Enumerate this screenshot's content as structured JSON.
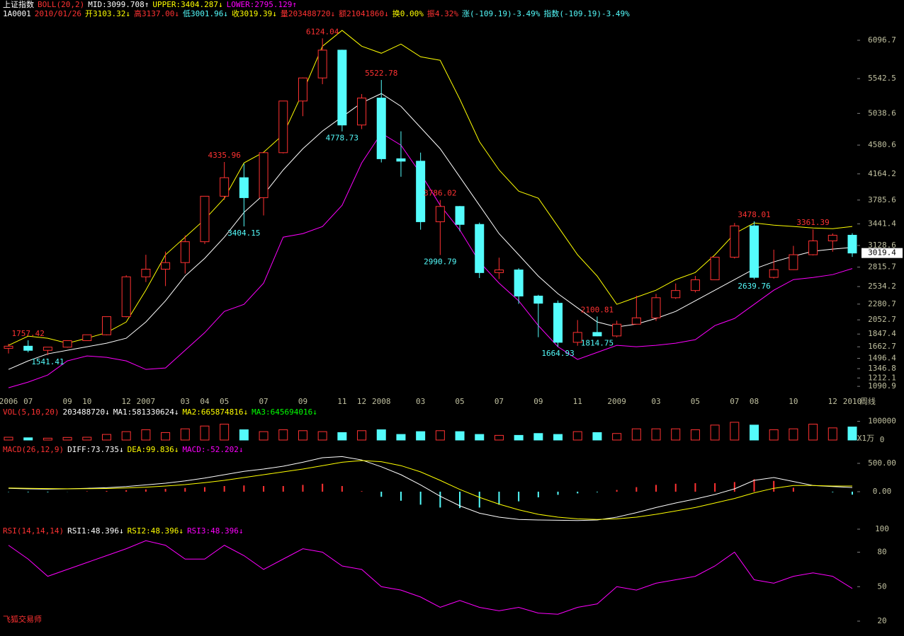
{
  "header": {
    "line1": [
      "上证指数",
      "BOLL(20,2)",
      "MID:3099.708↑",
      "UPPER:3404.287↓",
      "LOWER:2795.129↑"
    ],
    "line1_colors": [
      "#ffffff",
      "#ff3232",
      "#ffffff",
      "#ffff00",
      "#ff00ff"
    ],
    "line2": [
      "1A0001",
      "2010/01/26",
      "开3103.32↓",
      "高3137.00↓",
      "低3001.96↓",
      "收3019.39↓",
      "量203488720↓",
      "额21041860↓",
      "换0.00%",
      "振4.32%",
      "涨(-109.19)-3.49%",
      "指数(-109.19)-3.49%"
    ],
    "line2_colors": [
      "#ffffff",
      "#ff3232",
      "#ffff00",
      "#ff3232",
      "#54fcfc",
      "#ffff00",
      "#ff3232",
      "#ff3232",
      "#ffff00",
      "#ff3232",
      "#54fcfc",
      "#54fcfc"
    ],
    "footer": "飞狐交易师"
  },
  "chart_data": [
    {
      "type": "candlestick",
      "period": "周线",
      "categories": [
        "2006",
        "07",
        null,
        "09",
        "10",
        null,
        "12",
        "2007",
        null,
        "03",
        "04",
        "05",
        null,
        "07",
        null,
        "09",
        null,
        "11",
        "12",
        "2008",
        null,
        "03",
        null,
        "05",
        null,
        "07",
        null,
        "09",
        null,
        "11",
        null,
        "2009",
        null,
        "03",
        null,
        "05",
        null,
        "07",
        "08",
        null,
        "10",
        null,
        "12",
        "2010"
      ],
      "open": [
        1641,
        1672,
        1612,
        1658,
        1752,
        1837,
        2099,
        2675,
        2786,
        2881,
        3183,
        3841,
        4109,
        3820,
        4471,
        5218,
        5552,
        5954,
        4871,
        5261,
        4383,
        4348,
        3472,
        3693,
        3433,
        2736,
        2775,
        2397,
        2293,
        1728,
        1871,
        1820,
        1990,
        2082,
        2373,
        2477,
        2632,
        2959,
        3412,
        2667,
        2779,
        2995,
        3195,
        3277
      ],
      "high": [
        1706,
        1757.42,
        1658,
        1752,
        1838,
        2099,
        2698,
        2994,
        3040,
        3274,
        3842,
        4335.96,
        4312,
        4471,
        5218,
        5559,
        6124.04,
        5960,
        5319,
        5522.78,
        4780,
        4472,
        3786.02,
        3700,
        3459,
        2952,
        2800,
        2415,
        2333,
        2050,
        2100.81,
        2040,
        2402,
        2428,
        2579,
        2688,
        2965,
        3454,
        3478.01,
        3068,
        3123,
        3361.39,
        3303,
        3306
      ],
      "low": [
        1567,
        1583,
        1541.41,
        1650,
        1750,
        1830,
        2090,
        2600,
        2541,
        2723,
        3150,
        3790,
        3404.15,
        3563,
        4460,
        4999,
        5462,
        4778.73,
        4812,
        4330,
        4123,
        3357,
        2990.79,
        3334,
        2658,
        2644,
        2284,
        1802,
        1664.93,
        1678,
        1814.75,
        1800,
        1990,
        2037,
        2355,
        2450,
        2630,
        2940,
        2639.76,
        2650,
        2774,
        2985,
        3039,
        2963
      ],
      "close": [
        1672,
        1612,
        1658,
        1752,
        1837,
        2099,
        2675,
        2786,
        2881,
        3183,
        3841,
        4109,
        3820,
        4471,
        5218,
        5552,
        5954,
        4871,
        5261,
        4383,
        4348,
        3472,
        3693,
        3433,
        2736,
        2775,
        2397,
        2293,
        1728,
        1871,
        1820,
        1990,
        2082,
        2373,
        2477,
        2632,
        2959,
        3412,
        2667,
        2779,
        2995,
        3195,
        3277,
        3019.39
      ],
      "up_color": "#ff3232",
      "down_color": "#54fcfc",
      "series": [
        {
          "color": "#ffffff",
          "values": [
            1336,
            1459,
            1561,
            1613,
            1664,
            1715,
            1787,
            2022,
            2328,
            2687,
            2943,
            3249,
            3607,
            3863,
            4221,
            4528,
            4784,
            4989,
            5193,
            5326,
            5142,
            4835,
            4528,
            4119,
            3710,
            3300,
            2994,
            2686,
            2431,
            2226,
            2022,
            1950,
            1991,
            2073,
            2175,
            2328,
            2482,
            2635,
            2789,
            2891,
            2973,
            3045,
            3076,
            3100
          ]
        },
        {
          "color": "#ffff00",
          "values": [
            1684,
            1817,
            1787,
            1715,
            1787,
            1868,
            2022,
            2482,
            2994,
            3249,
            3505,
            3812,
            4323,
            4477,
            4733,
            5347,
            6011,
            6240,
            6011,
            5909,
            6042,
            5858,
            5807,
            5244,
            4630,
            4221,
            3914,
            3812,
            3403,
            2994,
            2686,
            2277,
            2380,
            2482,
            2635,
            2738,
            2994,
            3300,
            3454,
            3423,
            3403,
            3382,
            3372,
            3404
          ]
        },
        {
          "color": "#ff00ff",
          "values": [
            1070,
            1152,
            1255,
            1459,
            1531,
            1510,
            1459,
            1336,
            1357,
            1613,
            1868,
            2175,
            2277,
            2584,
            3249,
            3300,
            3403,
            3710,
            4323,
            4753,
            4579,
            4170,
            3710,
            3352,
            2891,
            2584,
            2328,
            1970,
            1664,
            1480,
            1582,
            1684,
            1664,
            1684,
            1715,
            1766,
            1970,
            2073,
            2277,
            2482,
            2635,
            2666,
            2707,
            2795
          ]
        }
      ],
      "annotations": [
        {
          "index": 1,
          "value": 1757.42
        },
        {
          "index": 2,
          "value": 1541.41
        },
        {
          "index": 11,
          "value": 4335.96
        },
        {
          "index": 12,
          "value": 3404.15
        },
        {
          "index": 16,
          "value": 6124.04
        },
        {
          "index": 17,
          "value": 4778.73
        },
        {
          "index": 19,
          "value": 5522.78
        },
        {
          "index": 22,
          "value": 3786.02
        },
        {
          "index": 22,
          "value": 2990.79
        },
        {
          "index": 28,
          "value": 1664.93
        },
        {
          "index": 30,
          "value": 2100.81
        },
        {
          "index": 30,
          "value": 1814.75
        },
        {
          "index": 38,
          "value": 3478.01
        },
        {
          "index": 38,
          "value": 2639.76
        },
        {
          "index": 41,
          "value": 3361.39
        }
      ],
      "last_price": 3019.4,
      "ylim": [
        1000,
        6270
      ],
      "yticks": [
        6096.7,
        5542.5,
        5038.6,
        4580.6,
        4164.2,
        3785.6,
        3441.4,
        3128.6,
        2815.7,
        2534.2,
        2280.7,
        2052.7,
        1847.4,
        1662.7,
        1496.4,
        1346.8,
        1212.1,
        1090.9
      ]
    },
    {
      "type": "bar",
      "legend_items": [
        "VOL(5,10,20)",
        "203488720↓",
        "MA1:581330624↓",
        "MA2:665874816↓",
        "MA3:645694016↓"
      ],
      "legend_colors": [
        "#ff3232",
        "#ffffff",
        "#ffffff",
        "#ffff00",
        "#00ff00"
      ],
      "unit": "X1万",
      "values": [
        15000,
        12000,
        10000,
        14000,
        15000,
        30000,
        45000,
        55000,
        40000,
        60000,
        75000,
        85000,
        55000,
        45000,
        55000,
        50000,
        45000,
        40000,
        50000,
        55000,
        30000,
        45000,
        50000,
        45000,
        30000,
        25000,
        25000,
        35000,
        30000,
        45000,
        40000,
        35000,
        60000,
        60000,
        60000,
        55000,
        80000,
        95000,
        80000,
        55000,
        60000,
        85000,
        65000,
        70000
      ],
      "ylim": [
        0,
        140000
      ],
      "yticks": [
        0,
        100000
      ]
    },
    {
      "type": "line",
      "legend_items": [
        "MACD(26,12,9)",
        "DIFF:73.735↓",
        "DEA:99.836↓",
        "MACD:-52.202↓"
      ],
      "legend_colors": [
        "#ff3232",
        "#ffffff",
        "#ffff00",
        "#ff00ff"
      ],
      "series": [
        {
          "color": "#ffffff",
          "values": [
            60,
            50,
            45,
            50,
            60,
            70,
            90,
            120,
            150,
            190,
            240,
            300,
            360,
            400,
            450,
            520,
            600,
            620,
            560,
            440,
            300,
            120,
            -80,
            -250,
            -380,
            -450,
            -490,
            -500,
            -505,
            -510,
            -500,
            -450,
            -370,
            -280,
            -200,
            -130,
            -50,
            50,
            200,
            250,
            180,
            110,
            90,
            73.735
          ]
        },
        {
          "color": "#ffff00",
          "values": [
            65,
            60,
            55,
            52,
            53,
            57,
            65,
            80,
            100,
            125,
            160,
            200,
            250,
            300,
            350,
            400,
            460,
            520,
            550,
            530,
            460,
            350,
            200,
            40,
            -100,
            -220,
            -320,
            -400,
            -450,
            -480,
            -490,
            -480,
            -450,
            -400,
            -340,
            -280,
            -200,
            -120,
            -20,
            60,
            110,
            110,
            100,
            99.836
          ]
        }
      ],
      "histogram": {
        "up_color": "#ff3232",
        "down_color": "#54fcfc",
        "values": [
          -5,
          -10,
          -10,
          -2,
          7,
          13,
          25,
          40,
          50,
          65,
          80,
          100,
          110,
          100,
          100,
          120,
          140,
          100,
          10,
          -90,
          -160,
          -230,
          -280,
          -290,
          -280,
          -230,
          -170,
          -100,
          -55,
          -30,
          -10,
          30,
          80,
          120,
          140,
          150,
          150,
          170,
          220,
          190,
          70,
          0,
          -10,
          -52.202
        ]
      },
      "ylim": [
        -625,
        625
      ],
      "yticks": [
        {
          "value": 500,
          "label": "500.00"
        },
        {
          "value": 0,
          "label": "0.00"
        }
      ]
    },
    {
      "type": "line",
      "legend_items": [
        "RSI(14,14,14)",
        "RSI1:48.396↓",
        "RSI2:48.396↓",
        "RSI3:48.396↓"
      ],
      "legend_colors": [
        "#ff3232",
        "#ffffff",
        "#ffff00",
        "#ff00ff"
      ],
      "series": [
        {
          "color": "#ff00ff",
          "values": [
            86,
            74,
            59,
            65,
            71,
            77,
            83,
            90,
            86,
            74,
            74,
            86,
            77,
            65,
            74,
            83,
            80,
            68,
            65,
            50,
            47,
            41,
            32,
            38,
            32,
            29,
            32,
            27,
            26,
            32,
            35,
            50,
            47,
            53,
            56,
            59,
            68,
            80,
            56,
            53,
            59,
            62,
            59,
            48.396
          ]
        }
      ],
      "ylim": [
        20,
        100
      ],
      "yticks": [
        100,
        80,
        50,
        20
      ]
    }
  ]
}
